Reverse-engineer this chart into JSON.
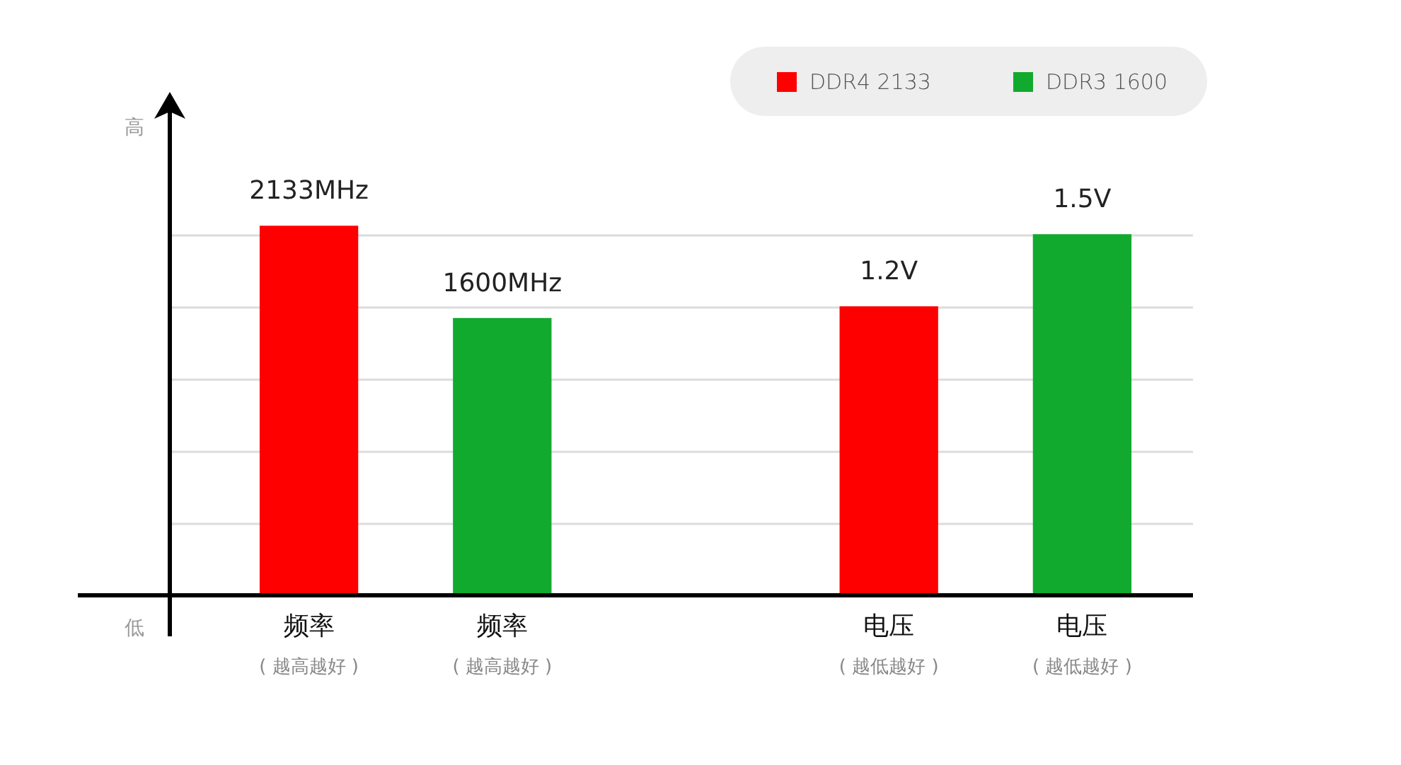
{
  "chart_data": {
    "type": "bar",
    "categories": [
      "频率\n( 越高越好 )",
      "频率\n( 越高越好 )",
      null,
      "电压\n( 越低越好 )",
      "电压\n( 越低越好 )"
    ],
    "series": [
      {
        "name": "DDR4 2133",
        "color": "#ff0000",
        "values": [
          2133,
          null,
          null,
          null,
          null
        ],
        "value_labels": [
          "2133MHz",
          null,
          null,
          null,
          null
        ]
      },
      {
        "name": "DDR3 1600",
        "color": "#11aa2e",
        "values": [
          null,
          1600,
          null,
          null,
          null
        ],
        "value_labels": [
          null,
          "1600MHz",
          null,
          null,
          null
        ]
      },
      {
        "color": "#ff0000",
        "axis": "y2",
        "values": [
          null,
          null,
          null,
          1.2,
          null
        ],
        "value_labels": [
          null,
          null,
          null,
          "1.2V",
          null
        ]
      },
      {
        "color": "#11aa2e",
        "axis": "y2",
        "values": [
          null,
          null,
          null,
          null,
          1.5
        ],
        "value_labels": [
          null,
          null,
          null,
          null,
          "1.5V"
        ]
      }
    ],
    "tick_labels": "x",
    "annotations": [
      "高",
      "低"
    ],
    "grid": "y",
    "legend": "top right"
  }
}
